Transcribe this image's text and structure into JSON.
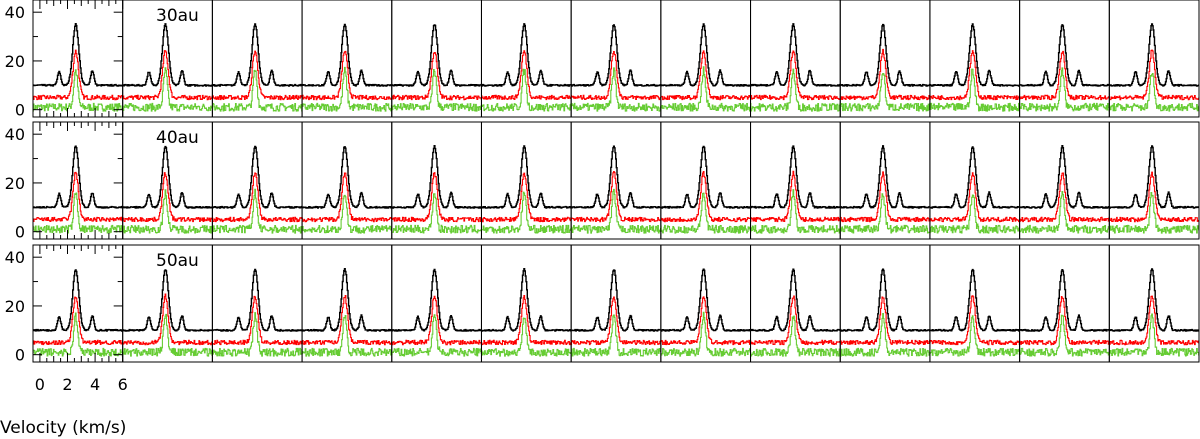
{
  "chart_data": {
    "type": "line",
    "layout": "grid of 3 rows × 13 columns of small spectra",
    "xlabel": "Velocity (km/s)",
    "ylabel": "",
    "xlim": [
      -0.5,
      6.0
    ],
    "ylim": [
      -3,
      45
    ],
    "x_ticks": [
      "0",
      "2",
      "4",
      "6"
    ],
    "y_ticks": [
      "0",
      "20",
      "40"
    ],
    "panel_columns": 13,
    "rows": [
      {
        "label": "30au"
      },
      {
        "label": "40au"
      },
      {
        "label": "50au"
      }
    ],
    "series": [
      {
        "color": "#000000",
        "baseline": 10,
        "peak_value": 35,
        "peak_velocity": 2.6,
        "peak_width": 0.22,
        "satellites": [
          {
            "velocity": 1.4,
            "value": 15.5,
            "width": 0.12
          },
          {
            "velocity": 3.8,
            "value": 16,
            "width": 0.12
          }
        ],
        "noise": 0.3
      },
      {
        "color": "#ff0000",
        "baseline": 5,
        "peak_value": 24,
        "peak_velocity": 2.6,
        "peak_width": 0.2,
        "satellites": [],
        "noise": 0.9
      },
      {
        "color": "#66cc33",
        "baseline": 1,
        "peak_value": 16,
        "peak_velocity": 2.6,
        "peak_width": 0.14,
        "satellites": [],
        "noise": 1.6
      }
    ],
    "grid": false,
    "legend": "none"
  }
}
